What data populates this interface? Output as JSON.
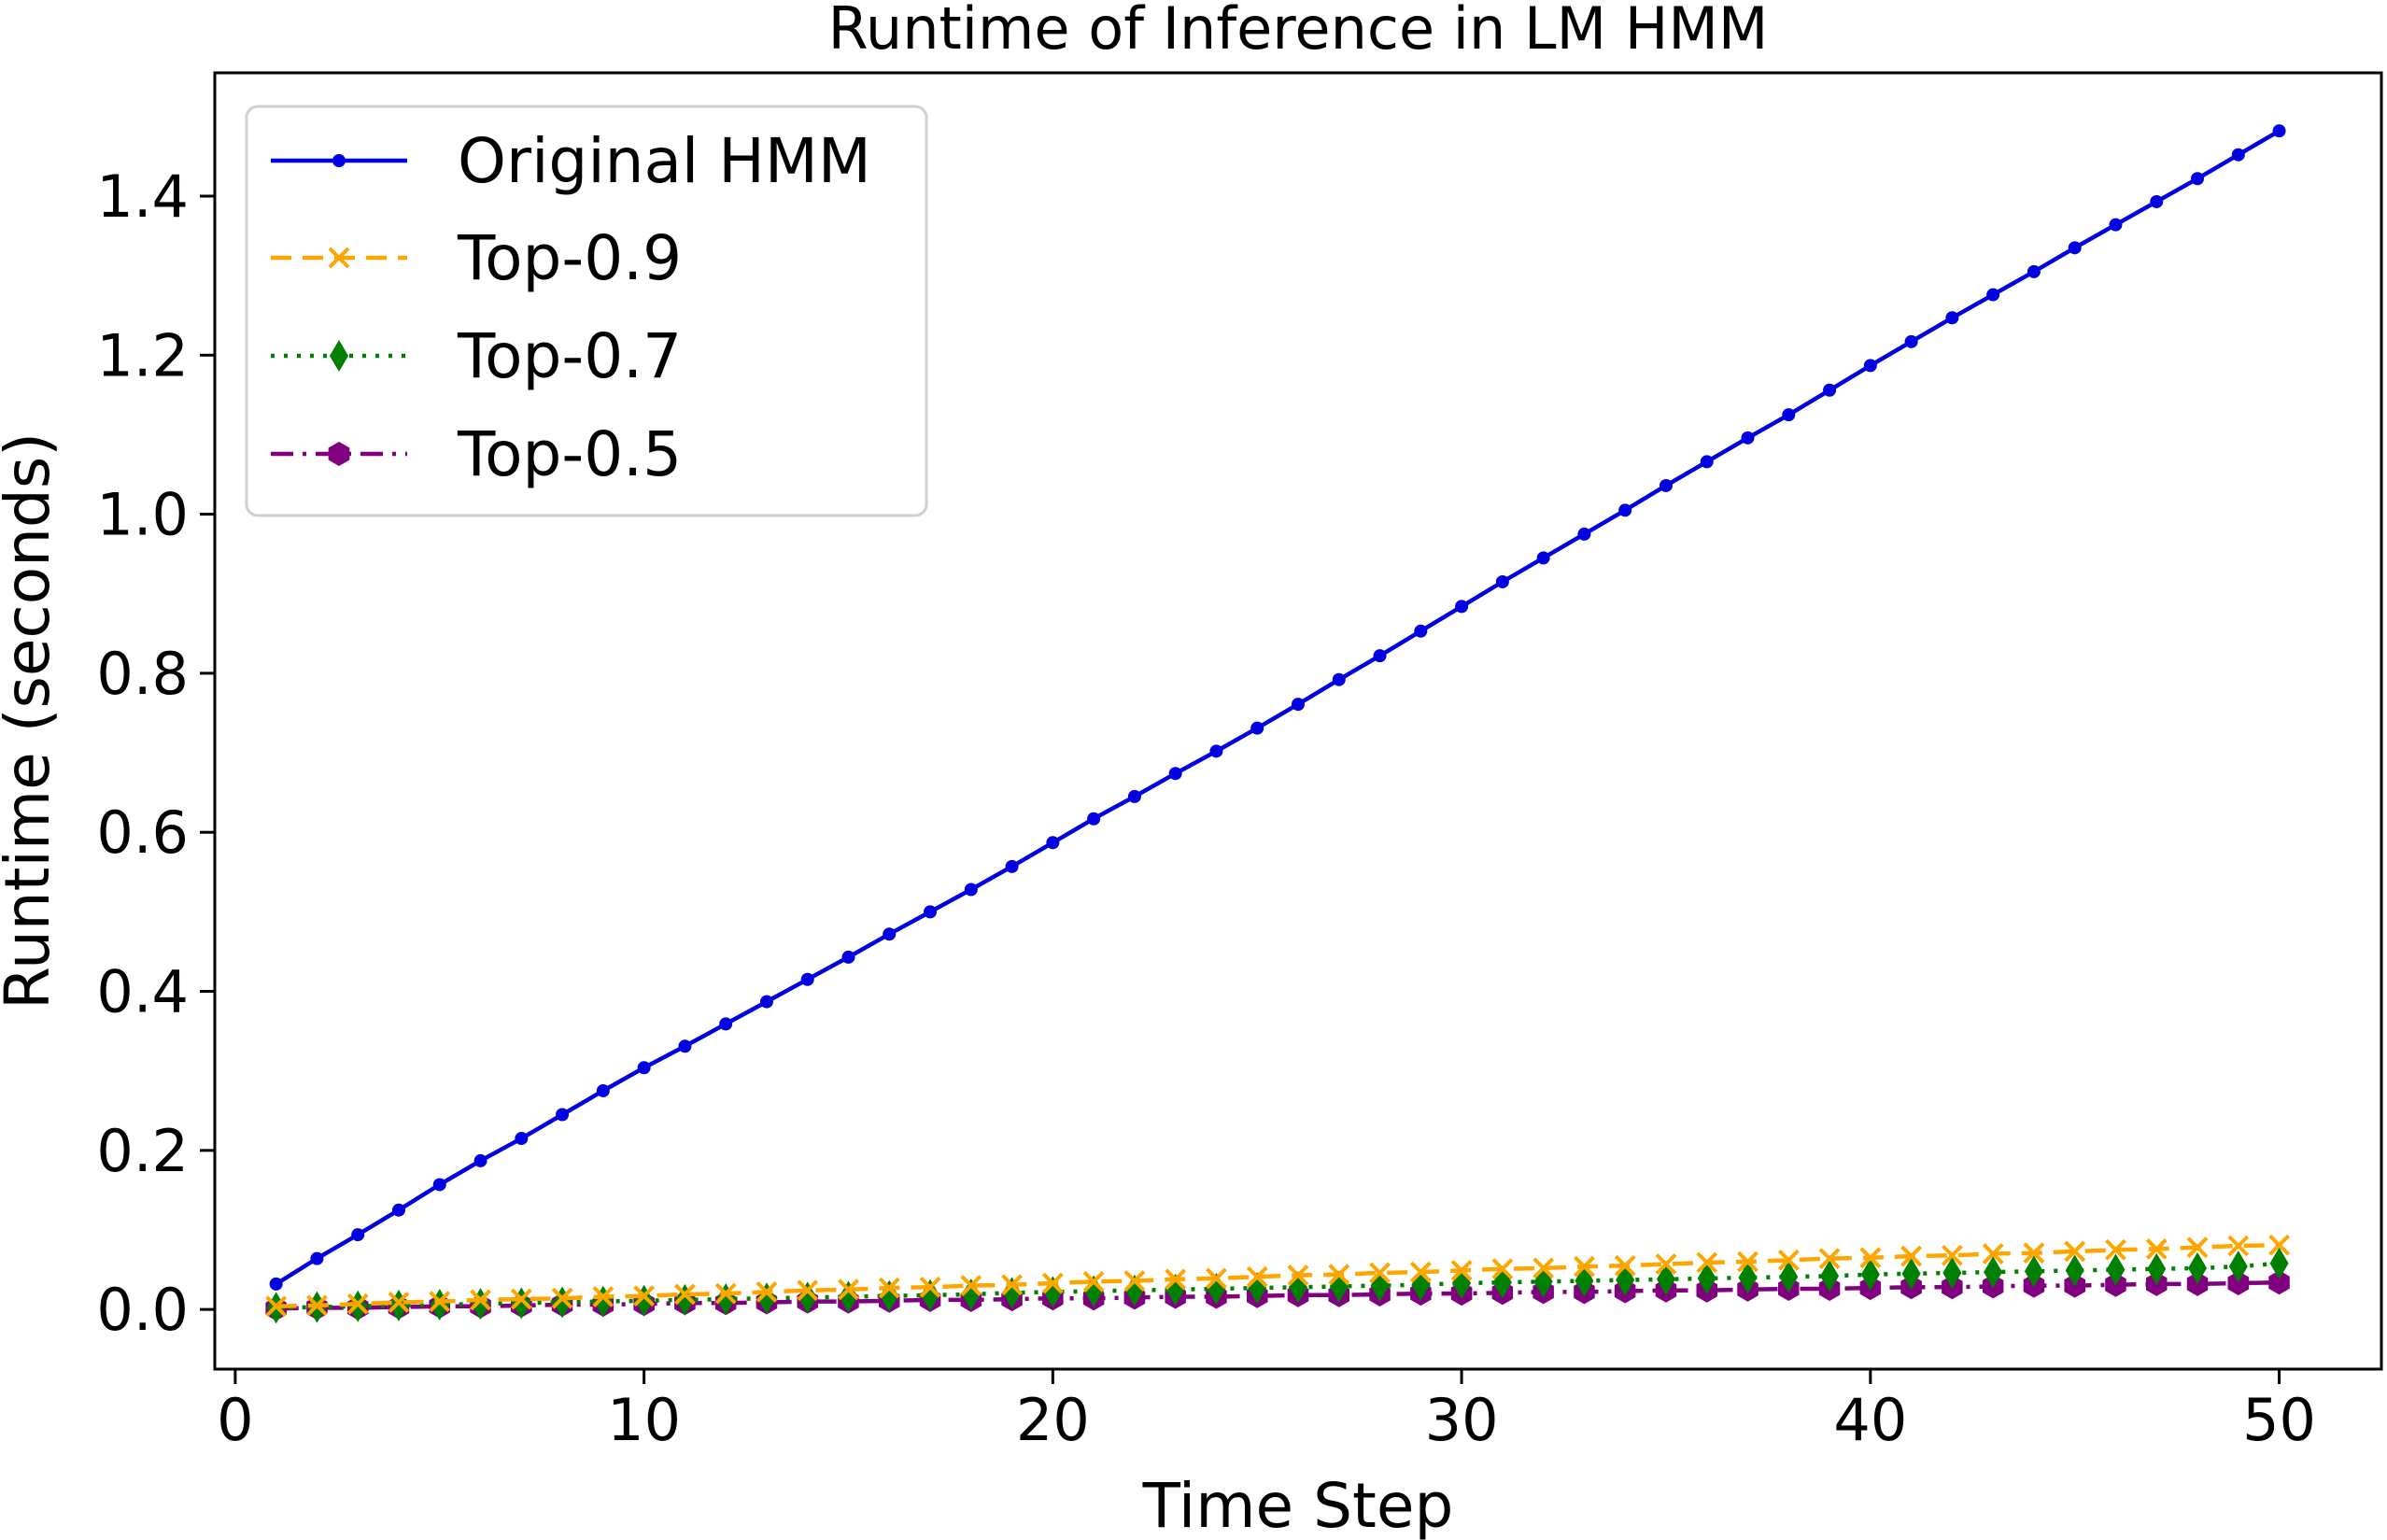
{
  "chart_data": {
    "type": "line",
    "title": "Runtime of Inference in LM HMM",
    "xlabel": "Time Step",
    "ylabel": "Runtime (seconds)",
    "xlim": [
      -0.5,
      52.5
    ],
    "ylim": [
      -0.075,
      1.555
    ],
    "x_ticks": [
      0,
      10,
      20,
      30,
      40,
      50
    ],
    "x_tick_labels": [
      "0",
      "10",
      "20",
      "30",
      "40",
      "50"
    ],
    "y_ticks": [
      0.0,
      0.2,
      0.4,
      0.6,
      0.8,
      1.0,
      1.2,
      1.4
    ],
    "y_tick_labels": [
      "0.0",
      "0.2",
      "0.4",
      "0.6",
      "0.8",
      "1.0",
      "1.2",
      "1.4"
    ],
    "grid": false,
    "legend_position": "top-left",
    "x": [
      1,
      2,
      3,
      4,
      5,
      6,
      7,
      8,
      9,
      10,
      11,
      12,
      13,
      14,
      15,
      16,
      17,
      18,
      19,
      20,
      21,
      22,
      23,
      24,
      25,
      26,
      27,
      28,
      29,
      30,
      31,
      32,
      33,
      34,
      35,
      36,
      37,
      38,
      39,
      40,
      41,
      42,
      43,
      44,
      45,
      46,
      47,
      48,
      49,
      50
    ],
    "series": [
      {
        "name": "Original HMM",
        "color": "#0000e0",
        "line_style": "solid",
        "marker": "circle",
        "values": [
          0.032,
          0.064,
          0.094,
          0.125,
          0.157,
          0.187,
          0.215,
          0.245,
          0.275,
          0.304,
          0.331,
          0.359,
          0.387,
          0.415,
          0.443,
          0.472,
          0.5,
          0.528,
          0.557,
          0.587,
          0.617,
          0.645,
          0.674,
          0.702,
          0.731,
          0.761,
          0.792,
          0.822,
          0.853,
          0.884,
          0.915,
          0.945,
          0.975,
          1.005,
          1.036,
          1.066,
          1.096,
          1.125,
          1.156,
          1.187,
          1.217,
          1.247,
          1.276,
          1.305,
          1.335,
          1.364,
          1.393,
          1.422,
          1.452,
          1.482
        ]
      },
      {
        "name": "Top-0.9",
        "color": "#ffa500",
        "line_style": "dashed",
        "marker": "x",
        "values": [
          0.004,
          0.005,
          0.007,
          0.009,
          0.01,
          0.012,
          0.013,
          0.014,
          0.016,
          0.017,
          0.019,
          0.02,
          0.022,
          0.024,
          0.025,
          0.027,
          0.028,
          0.03,
          0.031,
          0.033,
          0.035,
          0.036,
          0.038,
          0.039,
          0.041,
          0.043,
          0.044,
          0.046,
          0.047,
          0.049,
          0.051,
          0.052,
          0.054,
          0.055,
          0.057,
          0.059,
          0.06,
          0.062,
          0.064,
          0.065,
          0.067,
          0.068,
          0.07,
          0.071,
          0.073,
          0.075,
          0.076,
          0.078,
          0.08,
          0.081
        ]
      },
      {
        "name": "Top-0.7",
        "color": "#008000",
        "line_style": "dotted",
        "marker": "diamond",
        "values": [
          0.002,
          0.003,
          0.004,
          0.005,
          0.006,
          0.007,
          0.008,
          0.009,
          0.01,
          0.011,
          0.012,
          0.013,
          0.014,
          0.015,
          0.016,
          0.017,
          0.018,
          0.019,
          0.021,
          0.022,
          0.023,
          0.024,
          0.025,
          0.026,
          0.027,
          0.028,
          0.029,
          0.03,
          0.031,
          0.033,
          0.034,
          0.035,
          0.036,
          0.037,
          0.038,
          0.039,
          0.04,
          0.041,
          0.042,
          0.044,
          0.045,
          0.046,
          0.047,
          0.048,
          0.049,
          0.05,
          0.051,
          0.052,
          0.054,
          0.058
        ]
      },
      {
        "name": "Top-0.5",
        "color": "#800080",
        "line_style": "dashdot",
        "marker": "hexagon",
        "values": [
          0.001,
          0.002,
          0.002,
          0.003,
          0.004,
          0.004,
          0.005,
          0.006,
          0.006,
          0.007,
          0.008,
          0.008,
          0.009,
          0.01,
          0.01,
          0.011,
          0.012,
          0.012,
          0.013,
          0.014,
          0.014,
          0.015,
          0.016,
          0.016,
          0.017,
          0.018,
          0.018,
          0.019,
          0.02,
          0.02,
          0.021,
          0.022,
          0.022,
          0.023,
          0.024,
          0.024,
          0.025,
          0.026,
          0.026,
          0.027,
          0.028,
          0.028,
          0.029,
          0.03,
          0.03,
          0.031,
          0.032,
          0.032,
          0.033,
          0.034
        ]
      }
    ]
  }
}
